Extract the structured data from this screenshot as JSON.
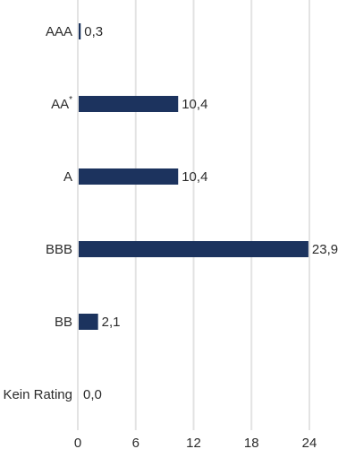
{
  "chart_data": {
    "type": "bar",
    "orientation": "horizontal",
    "categories": [
      "AAA",
      "AA",
      "A",
      "BBB",
      "BB",
      "Kein Rating"
    ],
    "category_superscripts": [
      "",
      "*",
      "",
      "",
      "",
      ""
    ],
    "values": [
      0.3,
      10.4,
      10.4,
      23.9,
      2.1,
      0.0
    ],
    "value_labels": [
      "0,3",
      "10,4",
      "10,4",
      "23,9",
      "2,1",
      "0,0"
    ],
    "xlim": [
      0,
      24
    ],
    "xticks": [
      0,
      6,
      12,
      18,
      24
    ],
    "xtick_labels": [
      "0",
      "6",
      "12",
      "18",
      "24"
    ],
    "grid": "vertical",
    "legend": "none",
    "title": "",
    "xlabel": "",
    "ylabel": "",
    "colors": {
      "bar": "#1c335e",
      "grid": "#e3e3e3",
      "axis": "#777777",
      "text": "#2b2b2b"
    }
  }
}
